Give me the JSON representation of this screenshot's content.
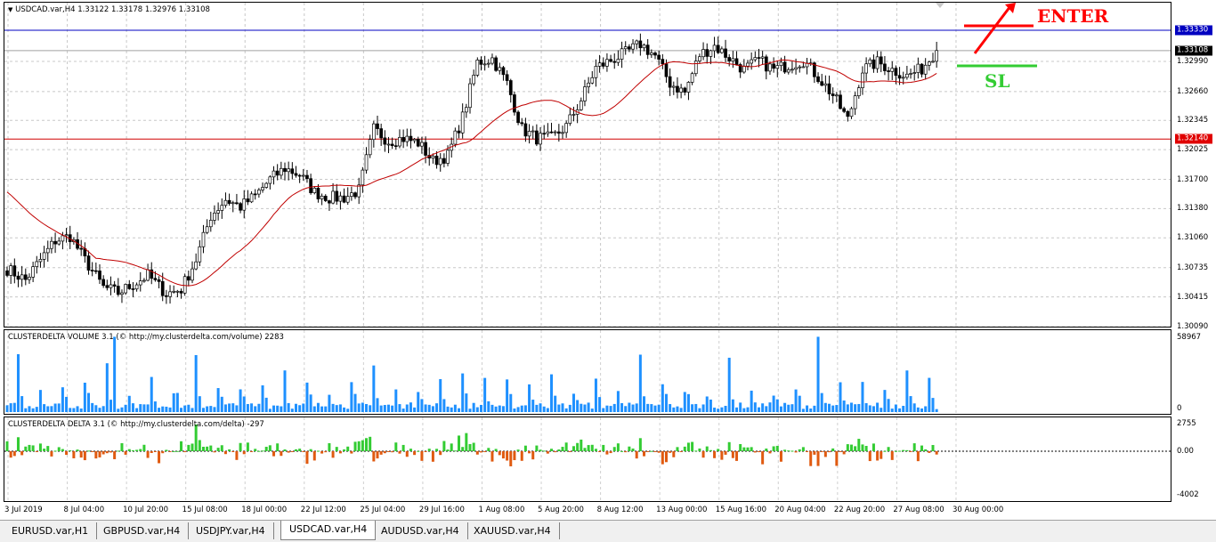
{
  "main": {
    "title": "USDCAD.var,H4  1.33122 1.33178 1.32976 1.33108",
    "price_ticks": [
      "1.33330",
      "1.32990",
      "1.32660",
      "1.32345",
      "1.32025",
      "1.31700",
      "1.31380",
      "1.31060",
      "1.30735",
      "1.30415",
      "1.30090"
    ],
    "current_price": "1.33108",
    "enter_line_price": "1.33330",
    "sl_line_price": "1.32140",
    "annotation_enter": "ENTER",
    "annotation_sl": "SL",
    "colors": {
      "bull": "#000000",
      "ma": "#c00000",
      "enter_line": "#0000c0",
      "sl_line": "#d00000",
      "enter_arrow": "#ff0000",
      "sl_mark": "#33cc33"
    }
  },
  "volume": {
    "title": "CLUSTERDELTA VOLUME 3.1 (© http://my.clusterdelta.com/volume) 2283",
    "axis_top": "58967",
    "axis_bottom": "0",
    "color": "#1e90ff"
  },
  "delta": {
    "title": "CLUSTERDELTA DELTA 3.1 (© http://my.clusterdelta.com/delta) -297",
    "axis_ticks": [
      "2755",
      "0.00",
      "-4002"
    ],
    "pos_color": "#33cc33",
    "neg_color": "#e05a10"
  },
  "time_axis": [
    "3 Jul 2019",
    "8 Jul 04:00",
    "10 Jul 20:00",
    "15 Jul 08:00",
    "18 Jul 00:00",
    "22 Jul 12:00",
    "25 Jul 04:00",
    "29 Jul 16:00",
    "1 Aug 08:00",
    "5 Aug 20:00",
    "8 Aug 12:00",
    "13 Aug 00:00",
    "15 Aug 16:00",
    "20 Aug 04:00",
    "22 Aug 20:00",
    "27 Aug 08:00",
    "30 Aug 00:00"
  ],
  "tabs": [
    "EURUSD.var,H1",
    "GBPUSD.var,H4",
    "USDJPY.var,H4",
    "USDCAD.var,H4",
    "AUDUSD.var,H4",
    "XAUUSD.var,H4"
  ],
  "active_tab": 3,
  "chart_data": {
    "type": "candlestick",
    "symbol": "USDCAD",
    "timeframe": "H4",
    "ylim": [
      1.3009,
      1.3333
    ],
    "x_tick_labels": [
      "3 Jul 2019",
      "8 Jul 04:00",
      "10 Jul 20:00",
      "15 Jul 08:00",
      "18 Jul 00:00",
      "22 Jul 12:00",
      "25 Jul 04:00",
      "29 Jul 16:00",
      "1 Aug 08:00",
      "5 Aug 20:00",
      "8 Aug 12:00",
      "13 Aug 00:00",
      "15 Aug 16:00",
      "20 Aug 04:00",
      "22 Aug 20:00",
      "27 Aug 08:00",
      "30 Aug 00:00"
    ],
    "close_path": [
      [
        0,
        1.3072
      ],
      [
        5,
        1.306
      ],
      [
        9,
        1.3082
      ],
      [
        13,
        1.3103
      ],
      [
        17,
        1.3108
      ],
      [
        21,
        1.3082
      ],
      [
        26,
        1.3052
      ],
      [
        30,
        1.3046
      ],
      [
        34,
        1.3055
      ],
      [
        38,
        1.3065
      ],
      [
        43,
        1.3045
      ],
      [
        47,
        1.305
      ],
      [
        51,
        1.3082
      ],
      [
        55,
        1.313
      ],
      [
        59,
        1.3148
      ],
      [
        63,
        1.314
      ],
      [
        67,
        1.3152
      ],
      [
        71,
        1.317
      ],
      [
        75,
        1.3182
      ],
      [
        79,
        1.3175
      ],
      [
        83,
        1.3156
      ],
      [
        87,
        1.315
      ],
      [
        91,
        1.315
      ],
      [
        95,
        1.3158
      ],
      [
        99,
        1.3225
      ],
      [
        103,
        1.3212
      ],
      [
        107,
        1.3215
      ],
      [
        111,
        1.321
      ],
      [
        115,
        1.319
      ],
      [
        119,
        1.3196
      ],
      [
        123,
        1.3238
      ],
      [
        127,
        1.3298
      ],
      [
        131,
        1.3302
      ],
      [
        135,
        1.3275
      ],
      [
        139,
        1.3225
      ],
      [
        143,
        1.3215
      ],
      [
        147,
        1.3215
      ],
      [
        151,
        1.3228
      ],
      [
        155,
        1.3257
      ],
      [
        159,
        1.3292
      ],
      [
        163,
        1.33
      ],
      [
        167,
        1.3308
      ],
      [
        171,
        1.3318
      ],
      [
        175,
        1.3305
      ],
      [
        179,
        1.3275
      ],
      [
        183,
        1.3265
      ],
      [
        187,
        1.3306
      ],
      [
        191,
        1.3316
      ],
      [
        195,
        1.3303
      ],
      [
        199,
        1.329
      ],
      [
        203,
        1.33
      ],
      [
        207,
        1.329
      ],
      [
        211,
        1.3295
      ],
      [
        215,
        1.33
      ],
      [
        219,
        1.3282
      ],
      [
        223,
        1.3262
      ],
      [
        227,
        1.3235
      ],
      [
        231,
        1.329
      ],
      [
        235,
        1.3298
      ],
      [
        239,
        1.329
      ],
      [
        243,
        1.3283
      ],
      [
        247,
        1.3291
      ],
      [
        251,
        1.3311
      ]
    ],
    "indicators": {
      "moving_average_color": "#c00000",
      "levels": [
        {
          "name": "ENTER",
          "price": 1.3333
        },
        {
          "name": "SL",
          "price": 1.3214
        }
      ]
    },
    "volume_ylim": [
      0,
      58967
    ],
    "delta_ylim": [
      -4002,
      2755
    ],
    "last_volume": 2283,
    "last_delta": -297
  }
}
